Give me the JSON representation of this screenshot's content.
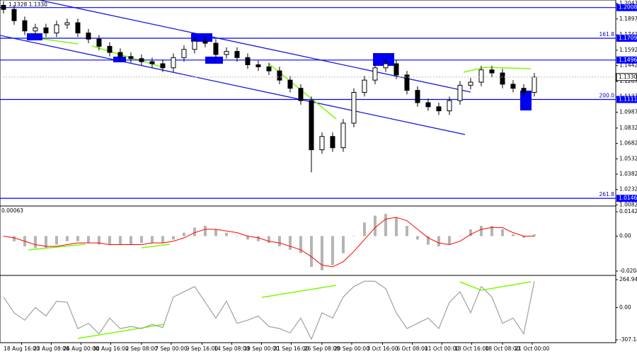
{
  "chart_data": [
    {
      "type": "candlestick",
      "info": "1.1328 1.1330",
      "color": "#000000",
      "open": [
        1.203,
        1.199,
        1.188,
        1.178,
        1.181,
        1.176,
        1.184,
        1.186,
        1.176,
        1.17,
        1.163,
        1.157,
        1.153,
        1.151,
        1.148,
        1.146,
        1.142,
        1.152,
        1.16,
        1.168,
        1.166,
        1.155,
        1.158,
        1.152,
        1.145,
        1.143,
        1.139,
        1.13,
        1.122,
        1.11,
        1.062,
        1.075,
        1.064,
        1.088,
        1.118,
        1.13,
        1.142,
        1.146,
        1.135,
        1.12,
        1.108,
        1.104,
        1.1,
        1.11,
        1.125,
        1.128,
        1.14,
        1.137,
        1.126,
        1.122,
        1.118
      ],
      "high": [
        1.207,
        1.203,
        1.192,
        1.185,
        1.185,
        1.188,
        1.19,
        1.19,
        1.18,
        1.174,
        1.167,
        1.161,
        1.157,
        1.155,
        1.152,
        1.15,
        1.156,
        1.164,
        1.172,
        1.172,
        1.17,
        1.162,
        1.162,
        1.156,
        1.149,
        1.147,
        1.143,
        1.134,
        1.126,
        1.114,
        1.079,
        1.079,
        1.092,
        1.122,
        1.134,
        1.146,
        1.151,
        1.15,
        1.139,
        1.124,
        1.112,
        1.108,
        1.114,
        1.129,
        1.132,
        1.144,
        1.144,
        1.141,
        1.13,
        1.126,
        1.137
      ],
      "low": [
        1.195,
        1.184,
        1.174,
        1.174,
        1.172,
        1.172,
        1.18,
        1.172,
        1.166,
        1.159,
        1.153,
        1.149,
        1.147,
        1.144,
        1.142,
        1.138,
        1.138,
        1.148,
        1.156,
        1.162,
        1.151,
        1.151,
        1.148,
        1.141,
        1.139,
        1.135,
        1.126,
        1.118,
        1.106,
        1.04,
        1.058,
        1.06,
        1.06,
        1.084,
        1.114,
        1.126,
        1.138,
        1.131,
        1.116,
        1.104,
        1.1,
        1.096,
        1.096,
        1.106,
        1.121,
        1.124,
        1.133,
        1.122,
        1.118,
        1.114,
        1.114
      ],
      "close": [
        1.199,
        1.188,
        1.178,
        1.181,
        1.176,
        1.184,
        1.186,
        1.176,
        1.17,
        1.163,
        1.157,
        1.153,
        1.151,
        1.148,
        1.146,
        1.142,
        1.152,
        1.16,
        1.168,
        1.166,
        1.155,
        1.158,
        1.152,
        1.145,
        1.143,
        1.139,
        1.13,
        1.122,
        1.11,
        1.062,
        1.075,
        1.064,
        1.088,
        1.118,
        1.13,
        1.142,
        1.146,
        1.135,
        1.12,
        1.108,
        1.104,
        1.1,
        1.11,
        1.125,
        1.128,
        1.14,
        1.137,
        1.126,
        1.122,
        1.118,
        1.133
      ],
      "xlim": [
        -0.33,
        57.67
      ],
      "ylim": [
        1.0078,
        1.2075
      ],
      "yticks": [
        1.2047,
        1.1897,
        1.1742,
        1.1592,
        1.1442,
        1.1287,
        1.1137,
        1.0987,
        1.0832,
        1.0682,
        1.0532,
        1.0382,
        1.0232,
        1.0082
      ],
      "levels": [
        1.2008,
        1.1709,
        1.1496,
        1.1111,
        1.0146
      ],
      "level_color": "#0000ff",
      "last": {
        "value": 1.133,
        "label": "1.1330"
      },
      "fib_levels": [
        {
          "value": 1.1709,
          "label": "161.8"
        },
        {
          "value": 1.1111,
          "label": "200.0"
        },
        {
          "value": 1.0146,
          "label": "261.8"
        }
      ]
    },
    {
      "type": "macd",
      "info": "0.00063",
      "hist_color": "#b4b4b4",
      "signal_color": "#ff0000",
      "histogram": [
        0.0,
        -0.003,
        -0.006,
        -0.007,
        -0.007,
        -0.005,
        -0.003,
        -0.003,
        -0.004,
        -0.005,
        -0.005,
        -0.005,
        -0.005,
        -0.004,
        -0.004,
        -0.004,
        -0.002,
        0.002,
        0.005,
        0.006,
        0.004,
        0.002,
        0.0,
        -0.002,
        -0.003,
        -0.004,
        -0.006,
        -0.008,
        -0.01,
        -0.018,
        -0.02,
        -0.017,
        -0.01,
        0.0,
        0.008,
        0.012,
        0.013,
        0.011,
        0.006,
        -0.002,
        -0.005,
        -0.006,
        -0.005,
        0.0,
        0.004,
        0.006,
        0.006,
        0.004,
        0.001,
        -0.001,
        0.001
      ],
      "signal": [
        0.0,
        -0.001,
        -0.003,
        -0.005,
        -0.006,
        -0.006,
        -0.005,
        -0.004,
        -0.004,
        -0.004,
        -0.005,
        -0.005,
        -0.005,
        -0.005,
        -0.004,
        -0.004,
        -0.003,
        -0.001,
        0.002,
        0.004,
        0.004,
        0.003,
        0.002,
        0.0,
        -0.001,
        -0.003,
        -0.004,
        -0.006,
        -0.008,
        -0.012,
        -0.017,
        -0.018,
        -0.015,
        -0.009,
        -0.002,
        0.005,
        0.01,
        0.011,
        0.009,
        0.004,
        -0.001,
        -0.004,
        -0.005,
        -0.003,
        0.001,
        0.004,
        0.005,
        0.005,
        0.002,
        0.0,
        0.0
      ],
      "xlim": [
        -0.33,
        57.67
      ],
      "ylim": [
        -0.0226,
        0.0172
      ],
      "yticks": [
        0.01427,
        {
          "value": 0,
          "label": "0.00"
        },
        -0.02049
      ]
    },
    {
      "type": "line",
      "color": "#a0a0a0",
      "values": [
        100,
        -50,
        -120,
        0,
        -80,
        60,
        50,
        -200,
        -150,
        -250,
        -100,
        -200,
        -180,
        -200,
        -160,
        -190,
        100,
        150,
        200,
        50,
        -100,
        60,
        -150,
        -120,
        -80,
        -180,
        -200,
        -240,
        -100,
        -300,
        -50,
        -100,
        100,
        200,
        250,
        250,
        180,
        -50,
        -200,
        -150,
        -100,
        -200,
        50,
        150,
        -50,
        200,
        100,
        -150,
        -100,
        -250,
        250
      ],
      "xlim": [
        -0.33,
        57.67
      ],
      "ylim": [
        -327,
        298.6
      ],
      "yticks": [
        264.9492,
        {
          "value": 0,
          "label": "0.00"
        },
        -307.1492
      ],
      "xticks": [
        {
          "value": 1.7,
          "label": "18 Aug 16:00"
        },
        {
          "value": 4.5,
          "label": "23 Aug 08:00"
        },
        {
          "value": 7.3,
          "label": "26 Aug 00:00"
        },
        {
          "value": 10.1,
          "label": "30 Aug 16:00"
        },
        {
          "value": 13,
          "label": "2 Sep 08:00"
        },
        {
          "value": 15.8,
          "label": "7 Sep 00:00"
        },
        {
          "value": 18.7,
          "label": "9 Sep 16:00"
        },
        {
          "value": 21.5,
          "label": "14 Sep 08:00"
        },
        {
          "value": 24.3,
          "label": "19 Sep 00:00"
        },
        {
          "value": 27.1,
          "label": "21 Sep 16:00"
        },
        {
          "value": 30,
          "label": "26 Sep 08:00"
        },
        {
          "value": 32.8,
          "label": "29 Sep 00:00"
        },
        {
          "value": 35.7,
          "label": "3 Oct 16:00"
        },
        {
          "value": 38.5,
          "label": "6 Oct 08:00"
        },
        {
          "value": 41.3,
          "label": "11 Oct 00:00"
        },
        {
          "value": 44.1,
          "label": "13 Oct 16:00"
        },
        {
          "value": 47,
          "label": "18 Oct 08:00"
        },
        {
          "value": 49.8,
          "label": "21 Oct 00:00"
        }
      ]
    }
  ]
}
